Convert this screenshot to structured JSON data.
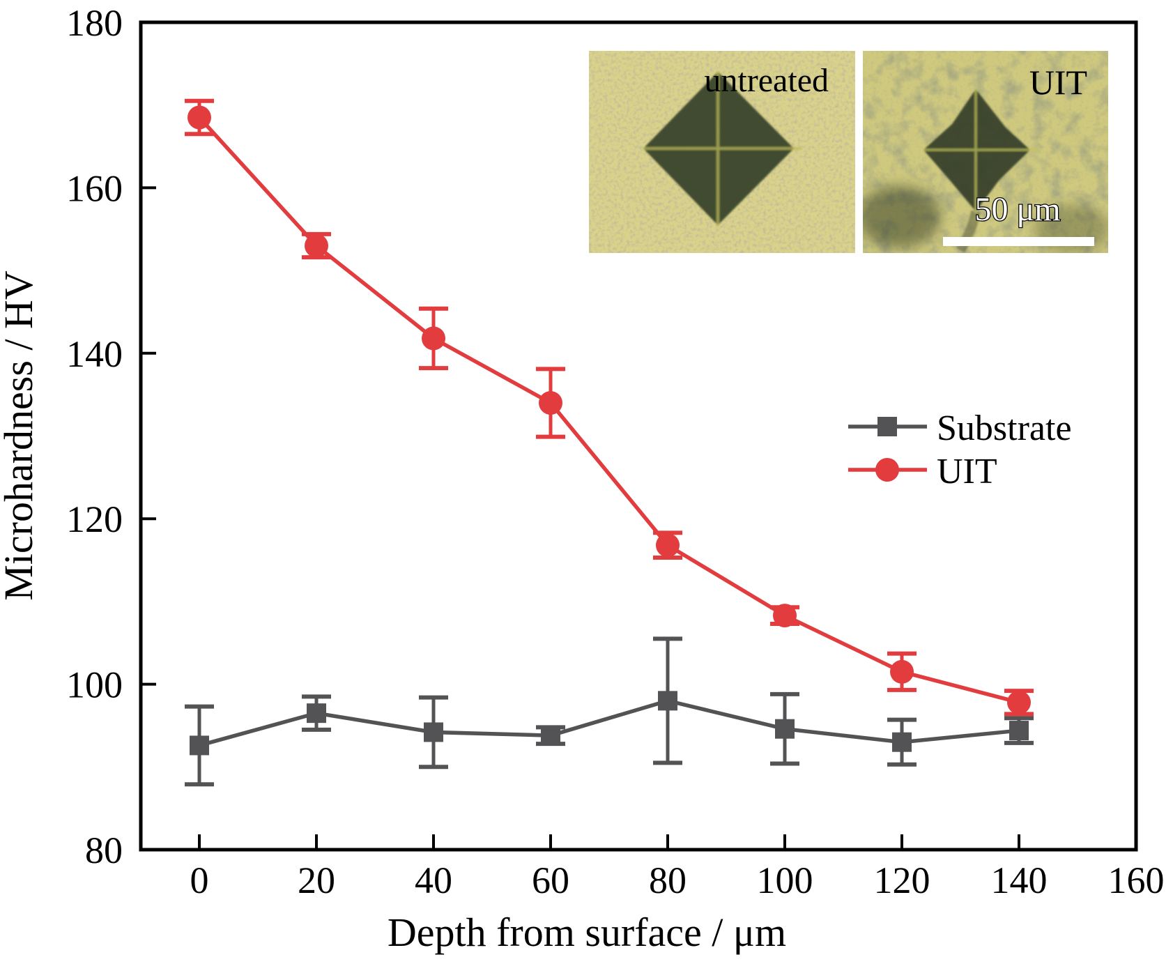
{
  "figure": {
    "background": "#ffffff",
    "axis_color": "#000000",
    "colors": {
      "substrate": "#535355",
      "uit": "#e23c3e"
    }
  },
  "chart_data": {
    "type": "line",
    "title": "",
    "xlabel": "Depth from surface / μm",
    "ylabel": "Microhardness / HV",
    "xlim": [
      -10,
      160
    ],
    "ylim": [
      80,
      180
    ],
    "x_ticks": [
      0,
      20,
      40,
      60,
      80,
      100,
      120,
      140,
      160
    ],
    "y_ticks": [
      80,
      100,
      120,
      140,
      160,
      180
    ],
    "grid": false,
    "legend_position": "center-right",
    "x": [
      0,
      20,
      40,
      60,
      80,
      100,
      120,
      140
    ],
    "series": [
      {
        "name": "Substrate",
        "marker": "square",
        "color": "#535355",
        "values": [
          92.6,
          96.5,
          94.2,
          93.8,
          98.0,
          94.6,
          93.0,
          94.4
        ],
        "errors": [
          4.7,
          2.0,
          4.2,
          1.0,
          7.5,
          4.2,
          2.7,
          1.5
        ]
      },
      {
        "name": "UIT",
        "marker": "circle",
        "color": "#e23c3e",
        "values": [
          168.5,
          153.0,
          141.8,
          134.0,
          116.8,
          108.3,
          101.5,
          97.8
        ],
        "errors": [
          2.0,
          1.4,
          3.6,
          4.1,
          1.5,
          1.0,
          2.2,
          1.4
        ]
      }
    ]
  },
  "insets": [
    {
      "label": "untreated"
    },
    {
      "label": "UIT",
      "scalebar_text": "50 μm"
    }
  ]
}
